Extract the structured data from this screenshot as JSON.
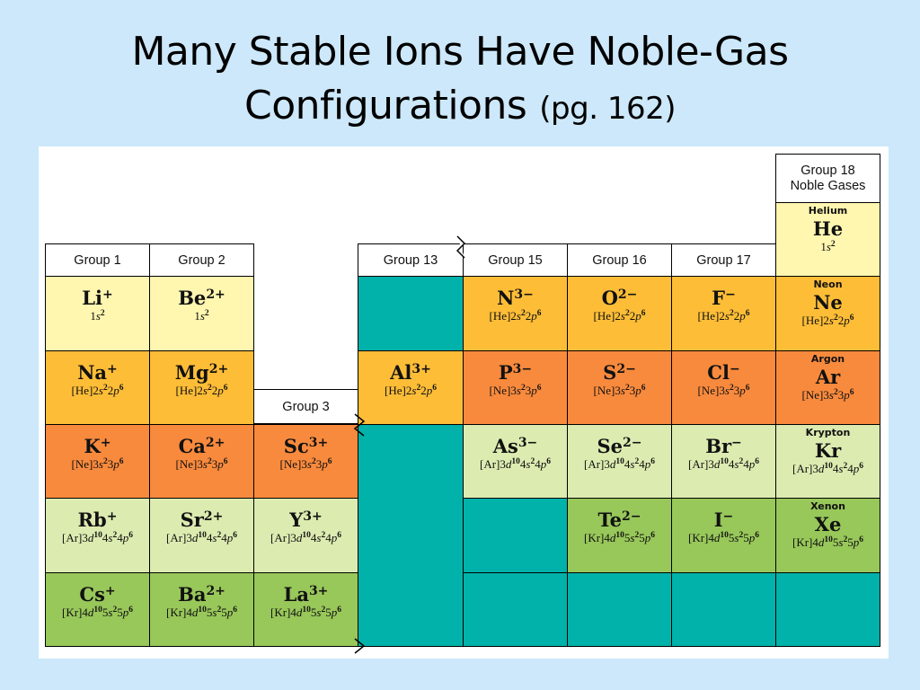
{
  "title": {
    "line1": "Many Stable Ions Have Noble-Gas",
    "line2": "Configurations",
    "page_ref": "(pg. 162)"
  },
  "table": {
    "headers": {
      "group1": "Group 1",
      "group2": "Group 2",
      "group3": "Group 3",
      "group13": "Group 13",
      "group15": "Group 15",
      "group16": "Group 16",
      "group17": "Group 17",
      "group18_line1": "Group 18",
      "group18_line2": "Noble Gases"
    },
    "colors": {
      "pale_yellow": "#fff6b0",
      "gold": "#fdbd37",
      "orange": "#f88a3d",
      "light_green": "#dcebb0",
      "green": "#98c75a",
      "teal": "#00b2a9"
    },
    "cells": [
      {
        "id": "li",
        "ion": "Li",
        "charge": "+",
        "color": "pale",
        "config": [
          [
            "",
            "1"
          ],
          [
            "s",
            "2"
          ]
        ]
      },
      {
        "id": "be",
        "ion": "Be",
        "charge": "2+",
        "color": "pale",
        "config": [
          [
            "",
            "1"
          ],
          [
            "s",
            "2"
          ]
        ]
      },
      {
        "id": "n",
        "ion": "N",
        "charge": "3−",
        "color": "gold",
        "config": [
          [
            "",
            "[He]2"
          ],
          [
            "s",
            "2"
          ],
          [
            "",
            "2"
          ],
          [
            "p",
            "6"
          ]
        ]
      },
      {
        "id": "o",
        "ion": "O",
        "charge": "2−",
        "color": "gold",
        "config": [
          [
            "",
            "[He]2"
          ],
          [
            "s",
            "2"
          ],
          [
            "",
            "2"
          ],
          [
            "p",
            "6"
          ]
        ]
      },
      {
        "id": "f",
        "ion": "F",
        "charge": "−",
        "color": "gold",
        "config": [
          [
            "",
            "[He]2"
          ],
          [
            "s",
            "2"
          ],
          [
            "",
            "2"
          ],
          [
            "p",
            "6"
          ]
        ]
      },
      {
        "id": "na",
        "ion": "Na",
        "charge": "+",
        "color": "gold",
        "config": [
          [
            "",
            "[He]2"
          ],
          [
            "s",
            "2"
          ],
          [
            "",
            "2"
          ],
          [
            "p",
            "6"
          ]
        ]
      },
      {
        "id": "mg",
        "ion": "Mg",
        "charge": "2+",
        "color": "gold",
        "config": [
          [
            "",
            "[He]2"
          ],
          [
            "s",
            "2"
          ],
          [
            "",
            "2"
          ],
          [
            "p",
            "6"
          ]
        ]
      },
      {
        "id": "al",
        "ion": "Al",
        "charge": "3+",
        "color": "gold",
        "config": [
          [
            "",
            "[He]2"
          ],
          [
            "s",
            "2"
          ],
          [
            "",
            "2"
          ],
          [
            "p",
            "6"
          ]
        ]
      },
      {
        "id": "p",
        "ion": "P",
        "charge": "3−",
        "color": "orange",
        "config": [
          [
            "",
            "[Ne]3"
          ],
          [
            "s",
            "2"
          ],
          [
            "",
            "3"
          ],
          [
            "p",
            "6"
          ]
        ]
      },
      {
        "id": "s",
        "ion": "S",
        "charge": "2−",
        "color": "orange",
        "config": [
          [
            "",
            "[Ne]3"
          ],
          [
            "s",
            "2"
          ],
          [
            "",
            "3"
          ],
          [
            "p",
            "6"
          ]
        ]
      },
      {
        "id": "cl",
        "ion": "Cl",
        "charge": "−",
        "color": "orange",
        "config": [
          [
            "",
            "[Ne]3"
          ],
          [
            "s",
            "2"
          ],
          [
            "",
            "3"
          ],
          [
            "p",
            "6"
          ]
        ]
      },
      {
        "id": "k",
        "ion": "K",
        "charge": "+",
        "color": "orange",
        "config": [
          [
            "",
            "[Ne]3"
          ],
          [
            "s",
            "2"
          ],
          [
            "",
            "3"
          ],
          [
            "p",
            "6"
          ]
        ]
      },
      {
        "id": "ca",
        "ion": "Ca",
        "charge": "2+",
        "color": "orange",
        "config": [
          [
            "",
            "[Ne]3"
          ],
          [
            "s",
            "2"
          ],
          [
            "",
            "3"
          ],
          [
            "p",
            "6"
          ]
        ]
      },
      {
        "id": "sc",
        "ion": "Sc",
        "charge": "3+",
        "color": "orange",
        "config": [
          [
            "",
            "[Ne]3"
          ],
          [
            "s",
            "2"
          ],
          [
            "",
            "3"
          ],
          [
            "p",
            "6"
          ]
        ]
      },
      {
        "id": "as",
        "ion": "As",
        "charge": "3−",
        "color": "lgreen",
        "config": [
          [
            "",
            "[Ar]3"
          ],
          [
            "d",
            "10"
          ],
          [
            "",
            "4"
          ],
          [
            "s",
            "2"
          ],
          [
            "",
            "4"
          ],
          [
            "p",
            "6"
          ]
        ]
      },
      {
        "id": "se",
        "ion": "Se",
        "charge": "2−",
        "color": "lgreen",
        "config": [
          [
            "",
            "[Ar]3"
          ],
          [
            "d",
            "10"
          ],
          [
            "",
            "4"
          ],
          [
            "s",
            "2"
          ],
          [
            "",
            "4"
          ],
          [
            "p",
            "6"
          ]
        ]
      },
      {
        "id": "br",
        "ion": "Br",
        "charge": "−",
        "color": "lgreen",
        "config": [
          [
            "",
            "[Ar]3"
          ],
          [
            "d",
            "10"
          ],
          [
            "",
            "4"
          ],
          [
            "s",
            "2"
          ],
          [
            "",
            "4"
          ],
          [
            "p",
            "6"
          ]
        ]
      },
      {
        "id": "rb",
        "ion": "Rb",
        "charge": "+",
        "color": "lgreen",
        "config": [
          [
            "",
            "[Ar]3"
          ],
          [
            "d",
            "10"
          ],
          [
            "",
            "4"
          ],
          [
            "s",
            "2"
          ],
          [
            "",
            "4"
          ],
          [
            "p",
            "6"
          ]
        ]
      },
      {
        "id": "sr",
        "ion": "Sr",
        "charge": "2+",
        "color": "lgreen",
        "config": [
          [
            "",
            "[Ar]3"
          ],
          [
            "d",
            "10"
          ],
          [
            "",
            "4"
          ],
          [
            "s",
            "2"
          ],
          [
            "",
            "4"
          ],
          [
            "p",
            "6"
          ]
        ]
      },
      {
        "id": "y",
        "ion": "Y",
        "charge": "3+",
        "color": "lgreen",
        "config": [
          [
            "",
            "[Ar]3"
          ],
          [
            "d",
            "10"
          ],
          [
            "",
            "4"
          ],
          [
            "s",
            "2"
          ],
          [
            "",
            "4"
          ],
          [
            "p",
            "6"
          ]
        ]
      },
      {
        "id": "te",
        "ion": "Te",
        "charge": "2−",
        "color": "green",
        "config": [
          [
            "",
            "[Kr]4"
          ],
          [
            "d",
            "10"
          ],
          [
            "",
            "5"
          ],
          [
            "s",
            "2"
          ],
          [
            "",
            "5"
          ],
          [
            "p",
            "6"
          ]
        ]
      },
      {
        "id": "i",
        "ion": "I",
        "charge": "−",
        "color": "green",
        "config": [
          [
            "",
            "[Kr]4"
          ],
          [
            "d",
            "10"
          ],
          [
            "",
            "5"
          ],
          [
            "s",
            "2"
          ],
          [
            "",
            "5"
          ],
          [
            "p",
            "6"
          ]
        ]
      },
      {
        "id": "cs",
        "ion": "Cs",
        "charge": "+",
        "color": "green",
        "config": [
          [
            "",
            "[Kr]4"
          ],
          [
            "d",
            "10"
          ],
          [
            "",
            "5"
          ],
          [
            "s",
            "2"
          ],
          [
            "",
            "5"
          ],
          [
            "p",
            "6"
          ]
        ]
      },
      {
        "id": "ba",
        "ion": "Ba",
        "charge": "2+",
        "color": "green",
        "config": [
          [
            "",
            "[Kr]4"
          ],
          [
            "d",
            "10"
          ],
          [
            "",
            "5"
          ],
          [
            "s",
            "2"
          ],
          [
            "",
            "5"
          ],
          [
            "p",
            "6"
          ]
        ]
      },
      {
        "id": "la",
        "ion": "La",
        "charge": "3+",
        "color": "green",
        "config": [
          [
            "",
            "[Kr]4"
          ],
          [
            "d",
            "10"
          ],
          [
            "",
            "5"
          ],
          [
            "s",
            "2"
          ],
          [
            "",
            "5"
          ],
          [
            "p",
            "6"
          ]
        ]
      }
    ],
    "noble_gases": [
      {
        "id": "he",
        "name": "Helium",
        "symbol": "He",
        "color": "pale",
        "config": [
          [
            "",
            "1"
          ],
          [
            "s",
            "2"
          ]
        ]
      },
      {
        "id": "ne",
        "name": "Neon",
        "symbol": "Ne",
        "color": "gold",
        "config": [
          [
            "",
            "[He]2"
          ],
          [
            "s",
            "2"
          ],
          [
            "",
            "2"
          ],
          [
            "p",
            "6"
          ]
        ]
      },
      {
        "id": "ar",
        "name": "Argon",
        "symbol": "Ar",
        "color": "orange",
        "config": [
          [
            "",
            "[Ne]3"
          ],
          [
            "s",
            "2"
          ],
          [
            "",
            "3"
          ],
          [
            "p",
            "6"
          ]
        ]
      },
      {
        "id": "kr",
        "name": "Krypton",
        "symbol": "Kr",
        "color": "lgreen",
        "config": [
          [
            "",
            "[Ar]3"
          ],
          [
            "d",
            "10"
          ],
          [
            "",
            "4"
          ],
          [
            "s",
            "2"
          ],
          [
            "",
            "4"
          ],
          [
            "p",
            "6"
          ]
        ]
      },
      {
        "id": "xe",
        "name": "Xenon",
        "symbol": "Xe",
        "color": "green",
        "config": [
          [
            "",
            "[Kr]4"
          ],
          [
            "d",
            "10"
          ],
          [
            "",
            "5"
          ],
          [
            "s",
            "2"
          ],
          [
            "",
            "5"
          ],
          [
            "p",
            "6"
          ]
        ]
      }
    ]
  }
}
